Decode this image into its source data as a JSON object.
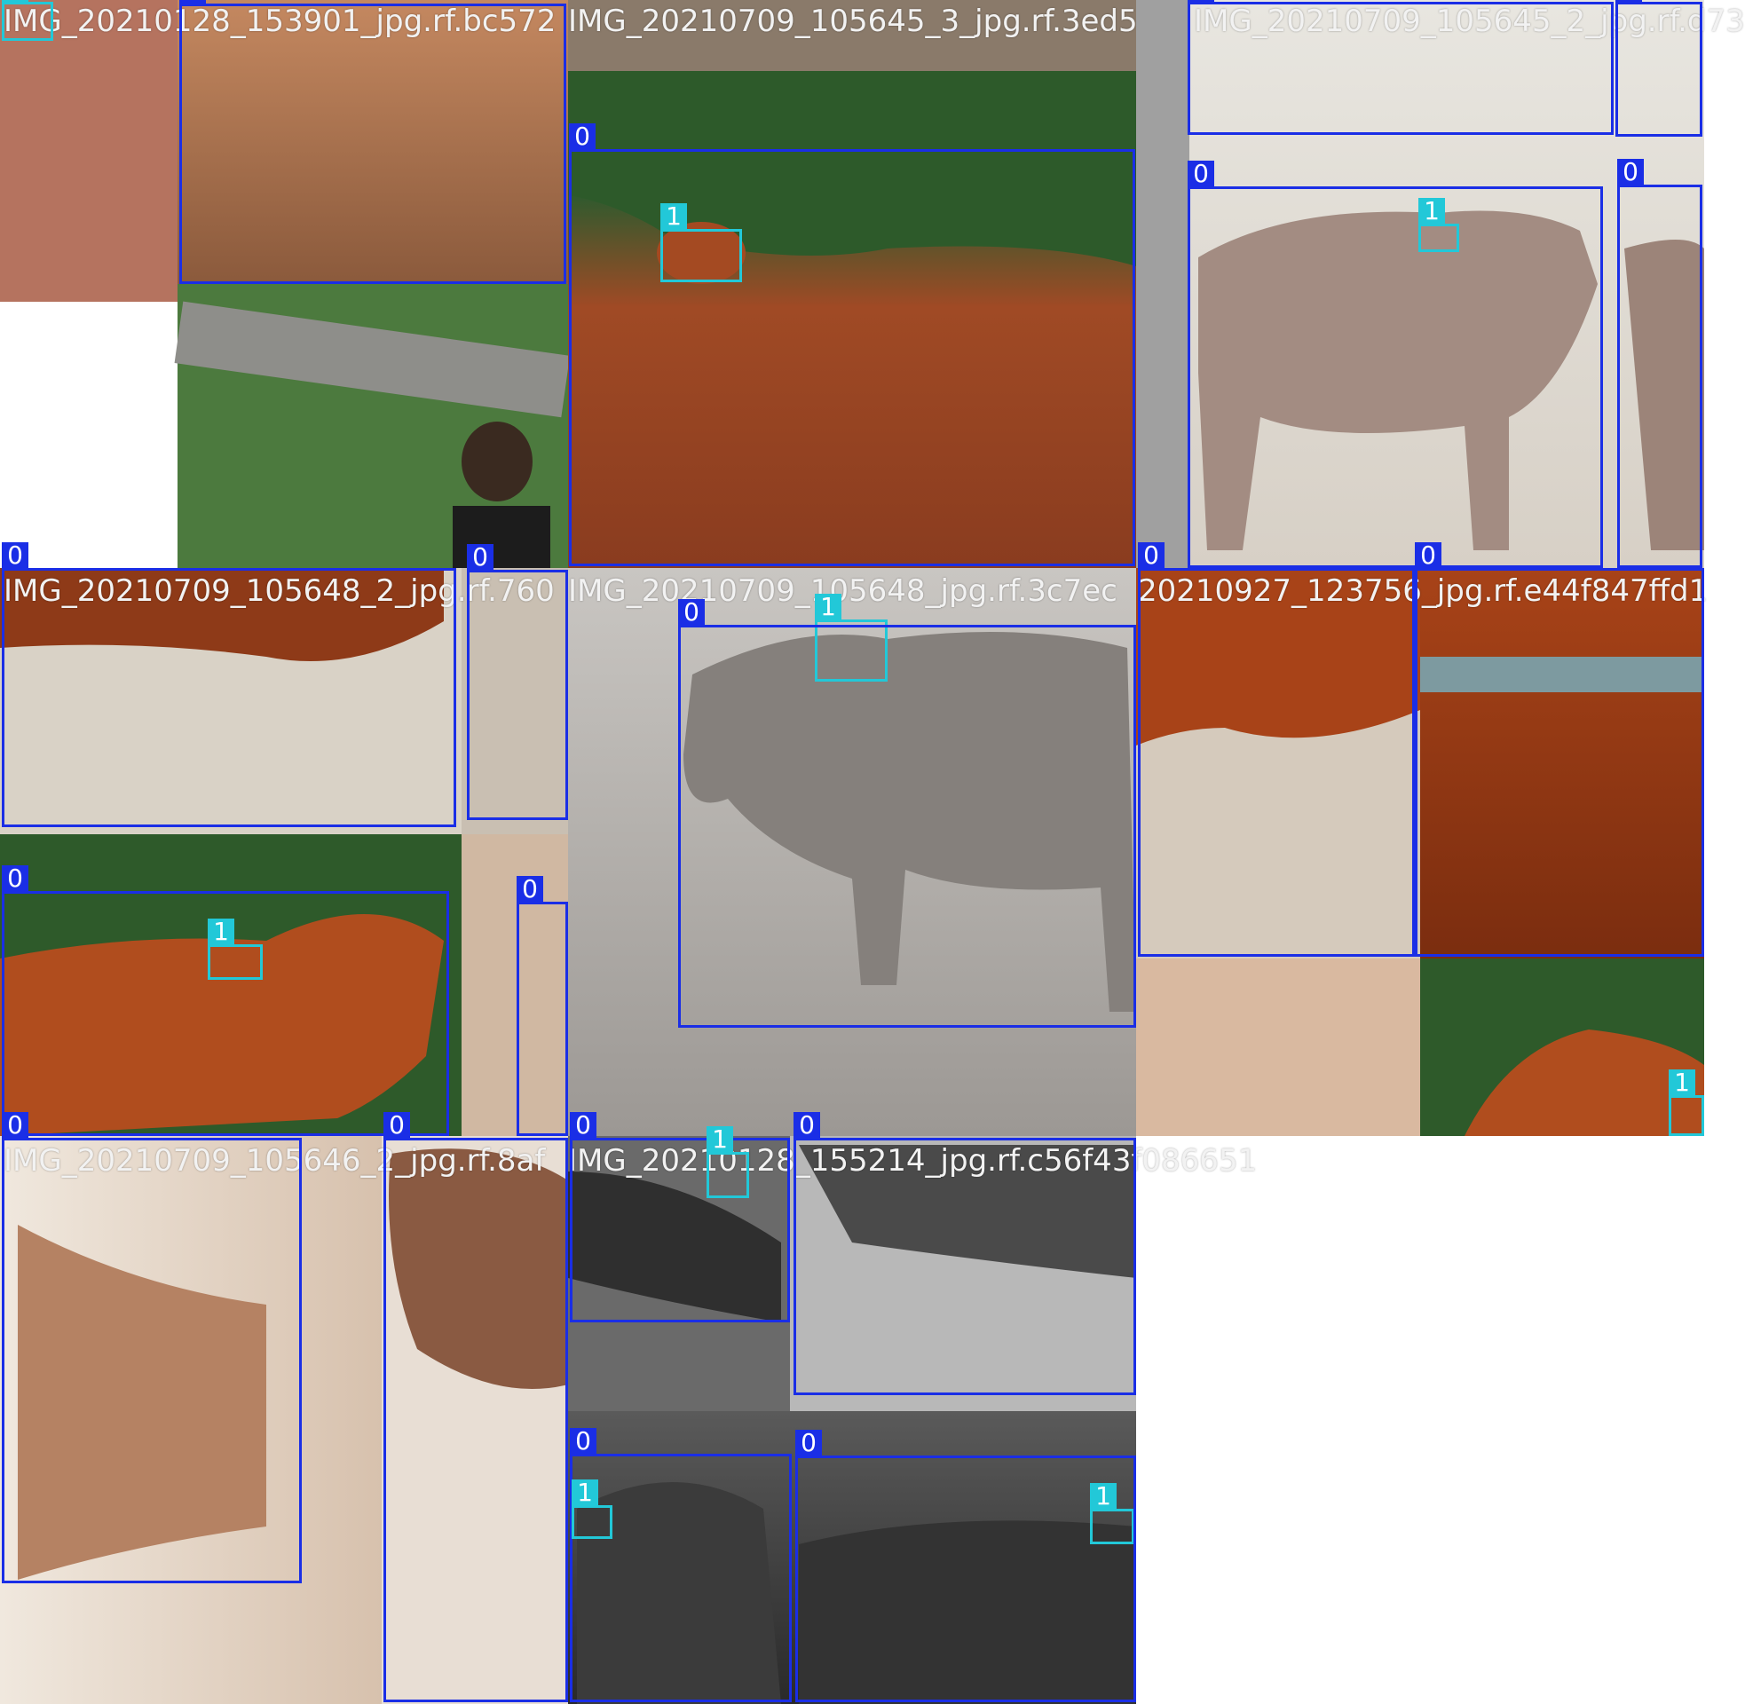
{
  "colors": {
    "class0": "#1a2ee6",
    "class1": "#22c8d8",
    "label_text": "#f2f2f2",
    "empty": "#ffffff"
  },
  "filenames": [
    "IMG_20210128_153901_jpg.rf.bc572",
    "IMG_20210709_105645_3_jpg.rf.3ed5",
    "IMG_20210709_105645_2_jpg.rf.d73",
    "IMG_20210709_105648_2_jpg.rf.760",
    "IMG_20210709_105648_jpg.rf.3c7ec",
    "20210927_123756_jpg.rf.e44f847ffd1",
    "IMG_20210709_105646_2_jpg.rf.8af",
    "IMG_20210128_155214_jpg.rf.c56f43f086651"
  ],
  "tiles": [
    {
      "name": "tile-a",
      "color": "#a0522d",
      "photo_colors": [
        "#7a5a45",
        "#c07d50",
        "#b36a3d"
      ]
    },
    {
      "name": "tile-b",
      "color": "#b4582f",
      "photo_colors": [
        "#3f6b3a",
        "#a64a25",
        "#8c3f22"
      ]
    },
    {
      "name": "tile-c",
      "color": "#a58c80",
      "photo_colors": [
        "#e6e2da",
        "#a28b80",
        "#5b6b4b"
      ]
    },
    {
      "name": "tile-d",
      "color": "#a9502a",
      "photo_colors": [
        "#d9d2c8",
        "#9b4a25",
        "#7a3519"
      ]
    },
    {
      "name": "tile-e",
      "color": "#8b8683",
      "photo_colors": [
        "#c8c3bf",
        "#7d7874",
        "#a59f9a"
      ]
    },
    {
      "name": "tile-f",
      "color": "#b04a1e",
      "photo_colors": [
        "#d5cabc",
        "#a84318",
        "#7f2f10"
      ]
    },
    {
      "name": "tile-g",
      "color": "#3a3a3a",
      "photo_colors": [
        "#6b6b6b",
        "#2c2c2c",
        "#9a9a9a"
      ]
    },
    {
      "name": "tile-h",
      "color": "#c89a7a",
      "photo_colors": [
        "#e9ded2",
        "#b88665",
        "#8a5e44"
      ]
    }
  ],
  "detections": [
    {
      "cls": "0",
      "label": "0"
    },
    {
      "cls": "0",
      "label": "0"
    },
    {
      "cls": "0",
      "label": "0"
    },
    {
      "cls": "0",
      "label": "0"
    },
    {
      "cls": "1",
      "label": "1"
    },
    {
      "cls": "0",
      "label": "0"
    },
    {
      "cls": "0",
      "label": "0"
    },
    {
      "cls": "1",
      "label": "1"
    },
    {
      "cls": "0",
      "label": "0"
    },
    {
      "cls": "0",
      "label": "0"
    },
    {
      "cls": "1",
      "label": "1"
    },
    {
      "cls": "1",
      "label": "1"
    },
    {
      "cls": "0",
      "label": "0"
    },
    {
      "cls": "0",
      "label": "0"
    },
    {
      "cls": "0",
      "label": "0"
    },
    {
      "cls": "0",
      "label": "0"
    },
    {
      "cls": "1",
      "label": "1"
    },
    {
      "cls": "0",
      "label": "0"
    },
    {
      "cls": "0",
      "label": "0"
    },
    {
      "cls": "0",
      "label": "0"
    },
    {
      "cls": "1",
      "label": "1"
    },
    {
      "cls": "0",
      "label": "0"
    },
    {
      "cls": "0",
      "label": "0"
    },
    {
      "cls": "1",
      "label": "1"
    },
    {
      "cls": "0",
      "label": "0"
    },
    {
      "cls": "1",
      "label": "1"
    },
    {
      "cls": "1",
      "label": "1"
    },
    {
      "cls": "0",
      "label": "0"
    }
  ]
}
